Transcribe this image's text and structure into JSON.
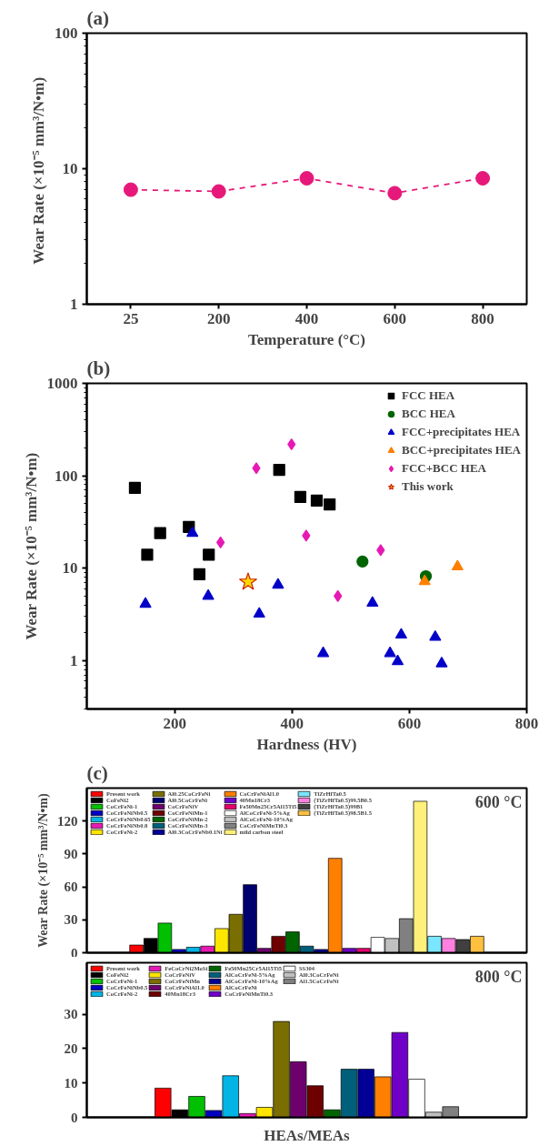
{
  "chart_data": [
    {
      "type": "line",
      "title": "(a)",
      "xlabel": "Temperature (°C)",
      "ylabel": "Wear Rate  (×10⁻⁵ mm³/N•m)",
      "categories": [
        "25",
        "200",
        "400",
        "600",
        "800"
      ],
      "series": [
        {
          "color": "#e6197a",
          "values": [
            7.0,
            6.8,
            8.5,
            6.6,
            8.5
          ]
        }
      ],
      "log": true,
      "ylim": [
        1,
        100
      ],
      "yticks": [
        1,
        10,
        100
      ],
      "grid": false,
      "legend": false,
      "marker": "circle",
      "line_style": "dashed"
    },
    {
      "type": "scatter",
      "title": "(b)",
      "xlabel": "Hardness (HV)",
      "ylabel": "Wear Rate (×10⁻⁵ mm³/N•m)",
      "log": true,
      "xlim": [
        50,
        800
      ],
      "xticks": [
        200,
        400,
        600,
        800
      ],
      "ylim": [
        0.3,
        1000
      ],
      "yticks": [
        1,
        10,
        100,
        1000
      ],
      "grid": false,
      "legend": "top right",
      "series": [
        {
          "name": "FCC HEA",
          "color": "#000000",
          "marker": "square",
          "x": [
            132,
            153,
            175,
            224,
            258,
            242,
            378,
            414,
            442,
            464
          ],
          "values": [
            74,
            14,
            24,
            28,
            14,
            8.6,
            116,
            59,
            54,
            49
          ]
        },
        {
          "name": "BCC HEA",
          "color": "#006400",
          "marker": "circle",
          "x": [
            520,
            628
          ],
          "values": [
            11.8,
            8.2
          ]
        },
        {
          "name": "FCC+precipitates HEA",
          "color": "#0000c8",
          "marker": "triangle",
          "x": [
            230,
            150,
            257,
            344,
            376,
            453,
            537,
            567,
            580,
            586,
            644,
            655
          ],
          "values": [
            24,
            4.1,
            5.0,
            3.2,
            6.6,
            1.2,
            4.2,
            1.2,
            0.98,
            1.9,
            1.8,
            0.93
          ]
        },
        {
          "name": "BCC+precipitates HEA",
          "color": "#ff7f00",
          "marker": "triangle",
          "x": [
            626,
            682
          ],
          "values": [
            7.2,
            10.4
          ]
        },
        {
          "name": "FCC+BCC HEA",
          "color": "#e619b4",
          "marker": "diamond",
          "x": [
            399,
            339,
            278,
            424,
            551,
            478
          ],
          "values": [
            219,
            121,
            19,
            22.5,
            15.7,
            5.0
          ]
        },
        {
          "name": "This work",
          "color": "#ffd700",
          "marker": "star",
          "x": [
            325
          ],
          "values": [
            7.1
          ]
        }
      ]
    },
    {
      "type": "bar",
      "title": "(c)",
      "ylabel": "Wear Rate (×10⁻⁵ mm³/N•m)",
      "annotations": [
        "600 °C"
      ],
      "ylim": [
        0,
        150
      ],
      "yticks": [
        0,
        30,
        60,
        90,
        120
      ],
      "grid": false,
      "legend": "top left",
      "tick_labels": "y",
      "categories": [
        null,
        null,
        null,
        null,
        null,
        null,
        null,
        null,
        null,
        null,
        null,
        null,
        null,
        null,
        null,
        null,
        null,
        null,
        null,
        null,
        null,
        null,
        null,
        null,
        null,
        null,
        null,
        null,
        null,
        null,
        null
      ],
      "series": [
        {
          "name": "Present work",
          "color": "#ff0000",
          "values": [
            null,
            null,
            null,
            7,
            null,
            null,
            null,
            null,
            null,
            null,
            null,
            null,
            null,
            null,
            null,
            null,
            null,
            null,
            null,
            null,
            null,
            null,
            null,
            null,
            null,
            null,
            null,
            null,
            null,
            null,
            null
          ]
        },
        {
          "name": "CoFeNi2",
          "color": "#000000",
          "values": [
            null,
            null,
            null,
            null,
            13,
            null,
            null,
            null,
            null,
            null,
            null,
            null,
            null,
            null,
            null,
            null,
            null,
            null,
            null,
            null,
            null,
            null,
            null,
            null,
            null,
            null,
            null,
            null,
            null,
            null,
            null
          ]
        },
        {
          "name": "CoCrFeNi-1",
          "color": "#00c000",
          "values": [
            null,
            null,
            null,
            null,
            null,
            27,
            null,
            null,
            null,
            null,
            null,
            null,
            null,
            null,
            null,
            null,
            null,
            null,
            null,
            null,
            null,
            null,
            null,
            null,
            null,
            null,
            null,
            null,
            null,
            null,
            null
          ]
        },
        {
          "name": "CoCrFeNiNb0.5",
          "color": "#0000c0",
          "values": [
            null,
            null,
            null,
            null,
            null,
            null,
            3,
            null,
            null,
            null,
            null,
            null,
            null,
            null,
            null,
            null,
            null,
            null,
            null,
            null,
            null,
            null,
            null,
            null,
            null,
            null,
            null,
            null,
            null,
            null,
            null
          ]
        },
        {
          "name": "CoCrFeNiNb0.65",
          "color": "#00b4e6",
          "values": [
            null,
            null,
            null,
            null,
            null,
            null,
            null,
            5,
            null,
            null,
            null,
            null,
            null,
            null,
            null,
            null,
            null,
            null,
            null,
            null,
            null,
            null,
            null,
            null,
            null,
            null,
            null,
            null,
            null,
            null,
            null
          ]
        },
        {
          "name": "CoCrFeNiNb0.8",
          "color": "#e619b4",
          "values": [
            null,
            null,
            null,
            null,
            null,
            null,
            null,
            null,
            6,
            null,
            null,
            null,
            null,
            null,
            null,
            null,
            null,
            null,
            null,
            null,
            null,
            null,
            null,
            null,
            null,
            null,
            null,
            null,
            null,
            null,
            null
          ]
        },
        {
          "name": "CoCrFeNi-2",
          "color": "#ffe600",
          "values": [
            null,
            null,
            null,
            null,
            null,
            null,
            null,
            null,
            null,
            22,
            null,
            null,
            null,
            null,
            null,
            null,
            null,
            null,
            null,
            null,
            null,
            null,
            null,
            null,
            null,
            null,
            null,
            null,
            null,
            null,
            null
          ]
        },
        {
          "name": "Al0.25CoCrFeNi",
          "color": "#7a6e00",
          "values": [
            null,
            null,
            null,
            null,
            null,
            null,
            null,
            null,
            null,
            null,
            35,
            null,
            null,
            null,
            null,
            null,
            null,
            null,
            null,
            null,
            null,
            null,
            null,
            null,
            null,
            null,
            null,
            null,
            null,
            null,
            null
          ]
        },
        {
          "name": "Al0.5CoCrFeNi",
          "color": "#00006e",
          "values": [
            null,
            null,
            null,
            null,
            null,
            null,
            null,
            null,
            null,
            null,
            null,
            62,
            null,
            null,
            null,
            null,
            null,
            null,
            null,
            null,
            null,
            null,
            null,
            null,
            null,
            null,
            null,
            null,
            null,
            null,
            null
          ]
        },
        {
          "name": "CoCrFeNiV",
          "color": "#6e006e",
          "values": [
            null,
            null,
            null,
            null,
            null,
            null,
            null,
            null,
            null,
            null,
            null,
            null,
            4,
            null,
            null,
            null,
            null,
            null,
            null,
            null,
            null,
            null,
            null,
            null,
            null,
            null,
            null,
            null,
            null,
            null,
            null
          ]
        },
        {
          "name": "CoCrFeNiMn-1",
          "color": "#6e0000",
          "values": [
            null,
            null,
            null,
            null,
            null,
            null,
            null,
            null,
            null,
            null,
            null,
            null,
            null,
            15,
            null,
            null,
            null,
            null,
            null,
            null,
            null,
            null,
            null,
            null,
            null,
            null,
            null,
            null,
            null,
            null,
            null
          ]
        },
        {
          "name": "CoCrFeNiMn-2",
          "color": "#006400",
          "values": [
            null,
            null,
            null,
            null,
            null,
            null,
            null,
            null,
            null,
            null,
            null,
            null,
            null,
            null,
            19,
            null,
            null,
            null,
            null,
            null,
            null,
            null,
            null,
            null,
            null,
            null,
            null,
            null,
            null,
            null,
            null
          ]
        },
        {
          "name": "CoCrFeNiMn-3",
          "color": "#005f7a",
          "values": [
            null,
            null,
            null,
            null,
            null,
            null,
            null,
            null,
            null,
            null,
            null,
            null,
            null,
            null,
            null,
            6,
            null,
            null,
            null,
            null,
            null,
            null,
            null,
            null,
            null,
            null,
            null,
            null,
            null,
            null,
            null
          ]
        },
        {
          "name": "Al0.3CoCrFeNb0.1Ni",
          "color": "#000096",
          "values": [
            null,
            null,
            null,
            null,
            null,
            null,
            null,
            null,
            null,
            null,
            null,
            null,
            null,
            null,
            null,
            null,
            3,
            null,
            null,
            null,
            null,
            null,
            null,
            null,
            null,
            null,
            null,
            null,
            null,
            null,
            null
          ]
        },
        {
          "name": "CoCrFeNiAl1.0",
          "color": "#ff7f00",
          "values": [
            null,
            null,
            null,
            null,
            null,
            null,
            null,
            null,
            null,
            null,
            null,
            null,
            null,
            null,
            null,
            null,
            null,
            86,
            null,
            null,
            null,
            null,
            null,
            null,
            null,
            null,
            null,
            null,
            null,
            null,
            null
          ]
        },
        {
          "name": "40Mn18Cr3",
          "color": "#7000c8",
          "values": [
            null,
            null,
            null,
            null,
            null,
            null,
            null,
            null,
            null,
            null,
            null,
            null,
            null,
            null,
            null,
            null,
            null,
            null,
            4,
            null,
            null,
            null,
            null,
            null,
            null,
            null,
            null,
            null,
            null,
            null,
            null
          ]
        },
        {
          "name": "Fe50Mn25Cr5Al15Ti5",
          "color": "#e6006e",
          "values": [
            null,
            null,
            null,
            null,
            null,
            null,
            null,
            null,
            null,
            null,
            null,
            null,
            null,
            null,
            null,
            null,
            null,
            null,
            null,
            4,
            null,
            null,
            null,
            null,
            null,
            null,
            null,
            null,
            null,
            null,
            null
          ]
        },
        {
          "name": "AlCoCrFeNi-5%Ag",
          "color": "#ffffff",
          "values": [
            null,
            null,
            null,
            null,
            null,
            null,
            null,
            null,
            null,
            null,
            null,
            null,
            null,
            null,
            null,
            null,
            null,
            null,
            null,
            null,
            14,
            null,
            null,
            null,
            null,
            null,
            null,
            null,
            null,
            null,
            null
          ]
        },
        {
          "name": "AlCoCrFeNi-10%Ag",
          "color": "#c0c0c0",
          "values": [
            null,
            null,
            null,
            null,
            null,
            null,
            null,
            null,
            null,
            null,
            null,
            null,
            null,
            null,
            null,
            null,
            null,
            null,
            null,
            null,
            null,
            13,
            null,
            null,
            null,
            null,
            null,
            null,
            null,
            null,
            null
          ]
        },
        {
          "name": "CoCrFeNiMnTi0.3",
          "color": "#808080",
          "values": [
            null,
            null,
            null,
            null,
            null,
            null,
            null,
            null,
            null,
            null,
            null,
            null,
            null,
            null,
            null,
            null,
            null,
            null,
            null,
            null,
            null,
            null,
            31,
            null,
            null,
            null,
            null,
            null,
            null,
            null,
            null
          ]
        },
        {
          "name": "mild carbon steel",
          "color": "#fff07a",
          "values": [
            null,
            null,
            null,
            null,
            null,
            null,
            null,
            null,
            null,
            null,
            null,
            null,
            null,
            null,
            null,
            null,
            null,
            null,
            null,
            null,
            null,
            null,
            null,
            138,
            null,
            null,
            null,
            null,
            null,
            null,
            null
          ]
        },
        {
          "name": "TiZrHfTa0.5",
          "color": "#7ae6ff",
          "values": [
            null,
            null,
            null,
            null,
            null,
            null,
            null,
            null,
            null,
            null,
            null,
            null,
            null,
            null,
            null,
            null,
            null,
            null,
            null,
            null,
            null,
            null,
            null,
            null,
            15,
            null,
            null,
            null,
            null,
            null,
            null
          ]
        },
        {
          "name": "(TiZrHfTa0.5)99.5B0.5",
          "color": "#ff80e0",
          "values": [
            null,
            null,
            null,
            null,
            null,
            null,
            null,
            null,
            null,
            null,
            null,
            null,
            null,
            null,
            null,
            null,
            null,
            null,
            null,
            null,
            null,
            null,
            null,
            null,
            null,
            13,
            null,
            null,
            null,
            null,
            null
          ]
        },
        {
          "name": "(TiZrHfTa0.5)99B1",
          "color": "#404040",
          "values": [
            null,
            null,
            null,
            null,
            null,
            null,
            null,
            null,
            null,
            null,
            null,
            null,
            null,
            null,
            null,
            null,
            null,
            null,
            null,
            null,
            null,
            null,
            null,
            null,
            null,
            null,
            12,
            null,
            null,
            null,
            null
          ]
        },
        {
          "name": "(TiZrHfTa0.5)98.5B1.5",
          "color": "#ffc040",
          "values": [
            null,
            null,
            null,
            null,
            null,
            null,
            null,
            null,
            null,
            null,
            null,
            null,
            null,
            null,
            null,
            null,
            null,
            null,
            null,
            null,
            null,
            null,
            null,
            null,
            null,
            null,
            null,
            15,
            null,
            null,
            null
          ]
        }
      ]
    },
    {
      "type": "bar",
      "xlabel": "HEAs/MEAs",
      "annotations": [
        "800 °C"
      ],
      "ylim": [
        0,
        45
      ],
      "yticks": [
        0,
        10,
        20,
        30
      ],
      "grid": false,
      "legend": "top left",
      "tick_labels": "y",
      "categories": [
        null,
        null,
        null,
        null,
        null,
        null,
        null,
        null,
        null,
        null,
        null,
        null,
        null,
        null,
        null,
        null,
        null,
        null,
        null,
        null,
        null,
        null,
        null,
        null,
        null,
        null
      ],
      "series": [
        {
          "name": "Present work",
          "color": "#ff0000",
          "values": [
            null,
            null,
            null,
            null,
            8.5,
            null,
            null,
            null,
            null,
            null,
            null,
            null,
            null,
            null,
            null,
            null,
            null,
            null,
            null,
            null,
            null,
            null,
            null,
            null,
            null,
            null
          ]
        },
        {
          "name": "CoFeNi2",
          "color": "#000000",
          "values": [
            null,
            null,
            null,
            null,
            null,
            2.2,
            null,
            null,
            null,
            null,
            null,
            null,
            null,
            null,
            null,
            null,
            null,
            null,
            null,
            null,
            null,
            null,
            null,
            null,
            null,
            null
          ]
        },
        {
          "name": "CoCrFeNi-1",
          "color": "#00c000",
          "values": [
            null,
            null,
            null,
            null,
            null,
            null,
            6.1,
            null,
            null,
            null,
            null,
            null,
            null,
            null,
            null,
            null,
            null,
            null,
            null,
            null,
            null,
            null,
            null,
            null,
            null,
            null
          ]
        },
        {
          "name": "CoCrFeNiNb0.5",
          "color": "#0000c0",
          "values": [
            null,
            null,
            null,
            null,
            null,
            null,
            null,
            2,
            null,
            null,
            null,
            null,
            null,
            null,
            null,
            null,
            null,
            null,
            null,
            null,
            null,
            null,
            null,
            null,
            null,
            null
          ]
        },
        {
          "name": "CoCrFeNi-2",
          "color": "#00b4e6",
          "values": [
            null,
            null,
            null,
            null,
            null,
            null,
            null,
            null,
            12.1,
            null,
            null,
            null,
            null,
            null,
            null,
            null,
            null,
            null,
            null,
            null,
            null,
            null,
            null,
            null,
            null,
            null
          ]
        },
        {
          "name": "FeCoCrNi2MoSi",
          "color": "#e619b4",
          "values": [
            null,
            null,
            null,
            null,
            null,
            null,
            null,
            null,
            null,
            1.1,
            null,
            null,
            null,
            null,
            null,
            null,
            null,
            null,
            null,
            null,
            null,
            null,
            null,
            null,
            null,
            null
          ]
        },
        {
          "name": "CoCrFeNiV",
          "color": "#ffe600",
          "values": [
            null,
            null,
            null,
            null,
            null,
            null,
            null,
            null,
            null,
            null,
            2.9,
            null,
            null,
            null,
            null,
            null,
            null,
            null,
            null,
            null,
            null,
            null,
            null,
            null,
            null,
            null
          ]
        },
        {
          "name": "CoCrFeNiMn",
          "color": "#7a6e00",
          "values": [
            null,
            null,
            null,
            null,
            null,
            null,
            null,
            null,
            null,
            null,
            null,
            27.9,
            null,
            null,
            null,
            null,
            null,
            null,
            null,
            null,
            null,
            null,
            null,
            null,
            null,
            null
          ]
        },
        {
          "name": "CoCrFeNiAl1.0",
          "color": "#6e006e",
          "values": [
            null,
            null,
            null,
            null,
            null,
            null,
            null,
            null,
            null,
            null,
            null,
            null,
            16.2,
            null,
            null,
            null,
            null,
            null,
            null,
            null,
            null,
            null,
            null,
            null,
            null,
            null
          ]
        },
        {
          "name": "40Mn18Cr3",
          "color": "#6e0000",
          "values": [
            null,
            null,
            null,
            null,
            null,
            null,
            null,
            null,
            null,
            null,
            null,
            null,
            null,
            9.2,
            null,
            null,
            null,
            null,
            null,
            null,
            null,
            null,
            null,
            null,
            null,
            null
          ]
        },
        {
          "name": "Fe50Mn25Cr5Al15Ti5",
          "color": "#006400",
          "values": [
            null,
            null,
            null,
            null,
            null,
            null,
            null,
            null,
            null,
            null,
            null,
            null,
            null,
            null,
            2.2,
            null,
            null,
            null,
            null,
            null,
            null,
            null,
            null,
            null,
            null,
            null
          ]
        },
        {
          "name": "AlCoCrFeNi-5%Ag",
          "color": "#005f7a",
          "values": [
            null,
            null,
            null,
            null,
            null,
            null,
            null,
            null,
            null,
            null,
            null,
            null,
            null,
            null,
            null,
            14,
            null,
            null,
            null,
            null,
            null,
            null,
            null,
            null,
            null,
            null
          ]
        },
        {
          "name": "AlCoCrFeNi-10%Ag",
          "color": "#000096",
          "values": [
            null,
            null,
            null,
            null,
            null,
            null,
            null,
            null,
            null,
            null,
            null,
            null,
            null,
            null,
            null,
            null,
            14,
            null,
            null,
            null,
            null,
            null,
            null,
            null,
            null,
            null
          ]
        },
        {
          "name": "AlCoCrFeNi",
          "color": "#ff7f00",
          "values": [
            null,
            null,
            null,
            null,
            null,
            null,
            null,
            null,
            null,
            null,
            null,
            null,
            null,
            null,
            null,
            null,
            null,
            11.8,
            null,
            null,
            null,
            null,
            null,
            null,
            null,
            null
          ]
        },
        {
          "name": "CoCrFeNiMnTi0.3",
          "color": "#7000c8",
          "values": [
            null,
            null,
            null,
            null,
            null,
            null,
            null,
            null,
            null,
            null,
            null,
            null,
            null,
            null,
            null,
            null,
            null,
            null,
            24.7,
            null,
            null,
            null,
            null,
            null,
            null,
            null
          ]
        },
        {
          "name": "SS304",
          "color": "#ffffff",
          "values": [
            null,
            null,
            null,
            null,
            null,
            null,
            null,
            null,
            null,
            null,
            null,
            null,
            null,
            null,
            null,
            null,
            null,
            null,
            null,
            11.1,
            null,
            null,
            null,
            null,
            null,
            null
          ]
        },
        {
          "name": "Al0.3CoCrFeNi",
          "color": "#c0c0c0",
          "values": [
            null,
            null,
            null,
            null,
            null,
            null,
            null,
            null,
            null,
            null,
            null,
            null,
            null,
            null,
            null,
            null,
            null,
            null,
            null,
            null,
            1.5,
            null,
            null,
            null,
            null,
            null
          ]
        },
        {
          "name": "Al1.5CoCrFeNi",
          "color": "#808080",
          "values": [
            null,
            null,
            null,
            null,
            null,
            null,
            null,
            null,
            null,
            null,
            null,
            null,
            null,
            null,
            null,
            null,
            null,
            null,
            null,
            null,
            null,
            3.1,
            null,
            null,
            null,
            null
          ]
        }
      ]
    }
  ]
}
